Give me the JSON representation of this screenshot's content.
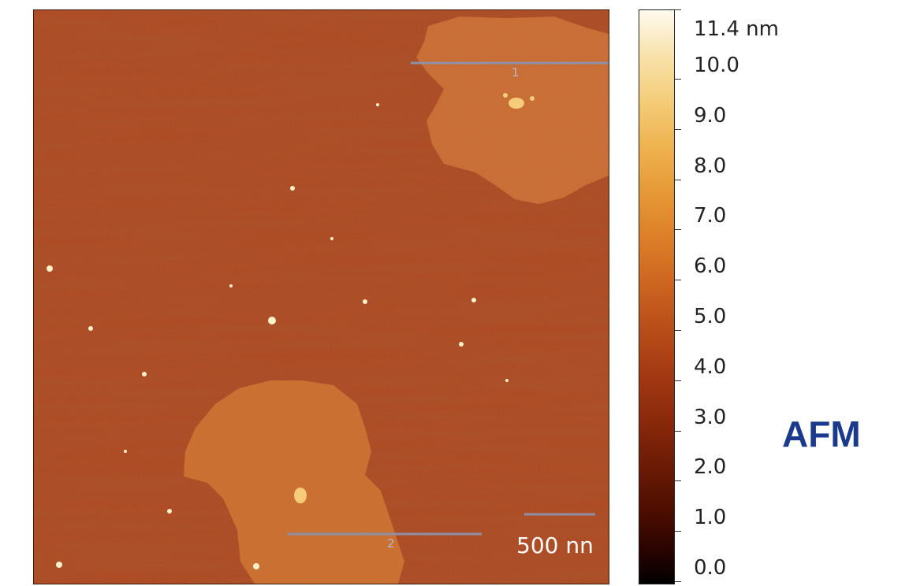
{
  "image": {
    "scale_bar_label": "500 nn",
    "profiles": [
      {
        "label": "1"
      },
      {
        "label": "2"
      }
    ]
  },
  "colorbar": {
    "unit_label": "11.4 nm",
    "ticks": [
      "10.0",
      "9.0",
      "8.0",
      "7.0",
      "6.0",
      "5.0",
      "4.0",
      "3.0",
      "2.0",
      "1.0",
      "0.0"
    ]
  },
  "caption": "AFM",
  "colors": {
    "caption": "#1c3a8c",
    "substrate": "#a8401c",
    "flake": "#c8682c"
  }
}
